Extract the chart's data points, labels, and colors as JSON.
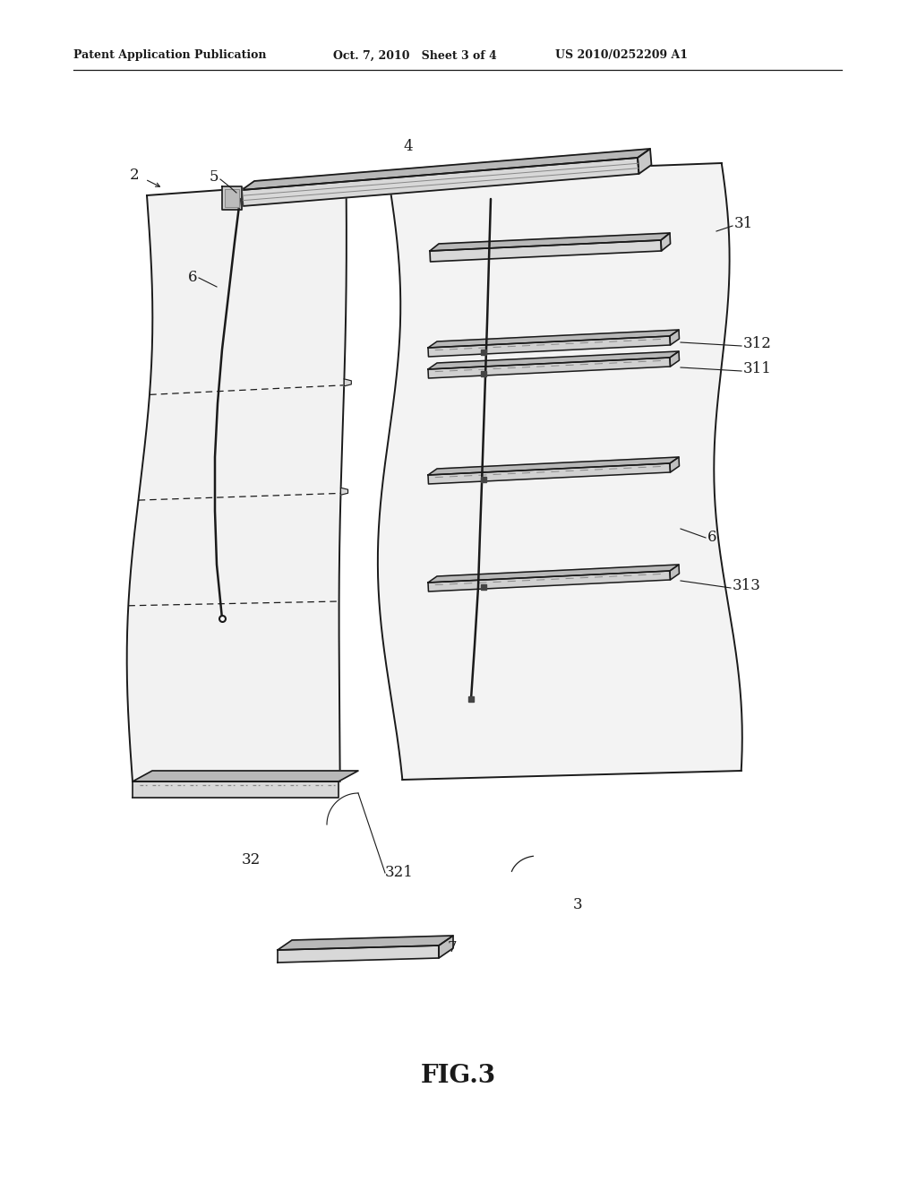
{
  "header_left": "Patent Application Publication",
  "header_mid": "Oct. 7, 2010   Sheet 3 of 4",
  "header_right": "US 2010/0252209 A1",
  "fig_label": "FIG.3",
  "bg_color": "#ffffff",
  "line_color": "#1a1a1a",
  "mid_gray": "#888888",
  "fill_light": "#f0f0f0",
  "fill_mid": "#d8d8d8",
  "fill_dark": "#b8b8b8"
}
